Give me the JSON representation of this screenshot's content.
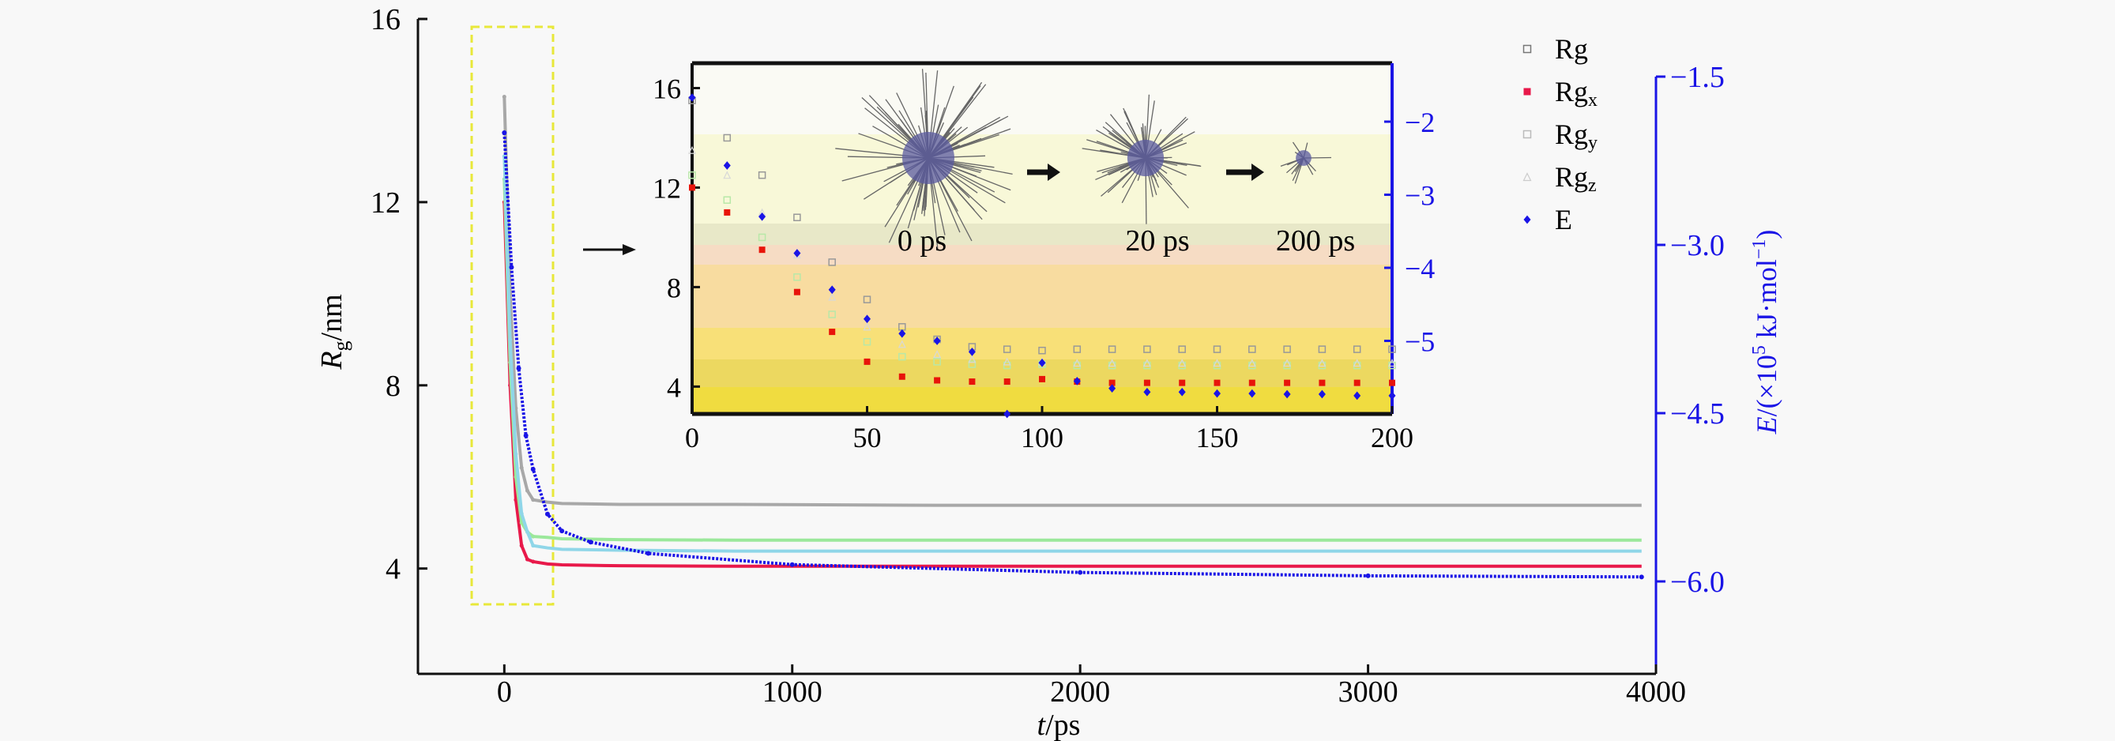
{
  "chart_data": [
    {
      "type": "scatter",
      "name": "main",
      "xlabel": {
        "italic": "t",
        "rest": "/ps"
      },
      "ylabel": {
        "italic": "R",
        "sub": "g",
        "rest": "/nm"
      },
      "y2label": {
        "italic": "E",
        "rest": "/(×10",
        "sup": "5",
        "rest2": " kJ·mol",
        "sup2": "−1",
        "end": ")"
      },
      "xlim": [
        -300,
        4000
      ],
      "ylim": [
        1.7,
        16
      ],
      "y2lim": [
        -6.5,
        -1.5
      ],
      "xticks": [
        "0",
        "1000",
        "2000",
        "3000",
        "4000"
      ],
      "yticks": [
        "4",
        "8",
        "12",
        "16"
      ],
      "y2ticks": [
        "−1.5",
        "−3.0",
        "−4.5",
        "−6.0"
      ],
      "x": [
        0,
        20,
        40,
        60,
        80,
        100,
        150,
        200,
        400,
        800,
        1500,
        2500,
        3950
      ],
      "series": [
        {
          "name": "Rg",
          "color": "#a8a8a8",
          "values": [
            14.3,
            10,
            7.5,
            6.2,
            5.7,
            5.5,
            5.45,
            5.42,
            5.4,
            5.4,
            5.38,
            5.38,
            5.38
          ]
        },
        {
          "name": "Rgx",
          "color": "#e8194a",
          "values": [
            12,
            8,
            5.5,
            4.5,
            4.2,
            4.15,
            4.1,
            4.08,
            4.06,
            4.05,
            4.05,
            4.05,
            4.05
          ]
        },
        {
          "name": "Rgy",
          "color": "#9be89b",
          "values": [
            12.5,
            8.5,
            6,
            5,
            4.8,
            4.7,
            4.68,
            4.65,
            4.63,
            4.62,
            4.62,
            4.62,
            4.62
          ]
        },
        {
          "name": "Rgz",
          "color": "#8fd6e8",
          "values": [
            13,
            9,
            6.5,
            5.2,
            4.8,
            4.5,
            4.45,
            4.42,
            4.4,
            4.38,
            4.38,
            4.38,
            4.38
          ]
        }
      ],
      "energy": {
        "name": "E",
        "color": "#1a14e6",
        "x": [
          0,
          25,
          50,
          75,
          100,
          150,
          200,
          300,
          500,
          1000,
          2000,
          3000,
          3950
        ],
        "values": [
          -2.0,
          -3.2,
          -4.1,
          -4.7,
          -5.0,
          -5.4,
          -5.55,
          -5.65,
          -5.75,
          -5.85,
          -5.92,
          -5.95,
          -5.96
        ]
      }
    },
    {
      "type": "scatter",
      "name": "inset",
      "xlim": [
        0,
        200
      ],
      "ylim": [
        2.9,
        17
      ],
      "y2lim": [
        -6.0,
        -1.2
      ],
      "xticks": [
        "0",
        "50",
        "100",
        "150",
        "200"
      ],
      "yticks": [
        "4",
        "8",
        "12",
        "16"
      ],
      "y2ticks": [
        "−2",
        "−3",
        "−4",
        "−5"
      ],
      "x": [
        0,
        10,
        20,
        30,
        40,
        50,
        60,
        70,
        80,
        90,
        100,
        110,
        120,
        130,
        140,
        150,
        160,
        170,
        180,
        190,
        200
      ],
      "series": [
        {
          "name": "Rg",
          "color": "#999999",
          "values": [
            15.5,
            14,
            12.5,
            10.8,
            9,
            7.5,
            6.4,
            5.9,
            5.6,
            5.5,
            5.45,
            5.5,
            5.5,
            5.5,
            5.5,
            5.5,
            5.5,
            5.5,
            5.5,
            5.5,
            5.5
          ]
        },
        {
          "name": "Rgx",
          "color": "#e8140a",
          "values": [
            12,
            11,
            9.5,
            7.8,
            6.2,
            5,
            4.4,
            4.25,
            4.2,
            4.2,
            4.3,
            4.2,
            4.15,
            4.15,
            4.15,
            4.15,
            4.15,
            4.15,
            4.15,
            4.15,
            4.15
          ]
        },
        {
          "name": "Rgy",
          "color": "#b8e8a8",
          "values": [
            12.5,
            11.5,
            10,
            8.4,
            6.9,
            5.8,
            5.2,
            5.0,
            4.9,
            4.85,
            4.9,
            4.85,
            4.85,
            4.85,
            4.85,
            4.85,
            4.85,
            4.85,
            4.85,
            4.85,
            4.85
          ]
        },
        {
          "name": "Rgz",
          "color": "#d8d8d8",
          "values": [
            13.5,
            12.5,
            11,
            9.3,
            7.6,
            6.4,
            5.7,
            5.3,
            5.1,
            5.0,
            5.0,
            4.95,
            4.95,
            4.95,
            4.95,
            4.95,
            4.95,
            4.95,
            4.95,
            4.95,
            4.95
          ]
        }
      ],
      "energy": {
        "name": "E",
        "color": "#1a14e6",
        "values": [
          -1.67,
          -2.6,
          -3.3,
          -3.8,
          -4.3,
          -4.7,
          -4.9,
          -5.0,
          -5.15,
          -6.0,
          -5.3,
          -5.55,
          -5.65,
          -5.7,
          -5.7,
          -5.72,
          -5.72,
          -5.73,
          -5.73,
          -5.75,
          -5.75
        ]
      },
      "annotations": [
        "0 ps",
        "20 ps",
        "200 ps"
      ]
    }
  ],
  "legend": {
    "placement": "top-right",
    "items": [
      {
        "label": "Rg",
        "sub": "",
        "marker": "open-square",
        "color": "#777777"
      },
      {
        "label": "Rg",
        "sub": "x",
        "marker": "filled-square",
        "color": "#e8194a"
      },
      {
        "label": "Rg",
        "sub": "y",
        "marker": "open-square",
        "color": "#bbbbbb"
      },
      {
        "label": "Rg",
        "sub": "z",
        "marker": "triangle",
        "color": "#cccccc"
      },
      {
        "label": "E",
        "sub": "",
        "marker": "diamond",
        "color": "#1a14e6"
      }
    ]
  }
}
